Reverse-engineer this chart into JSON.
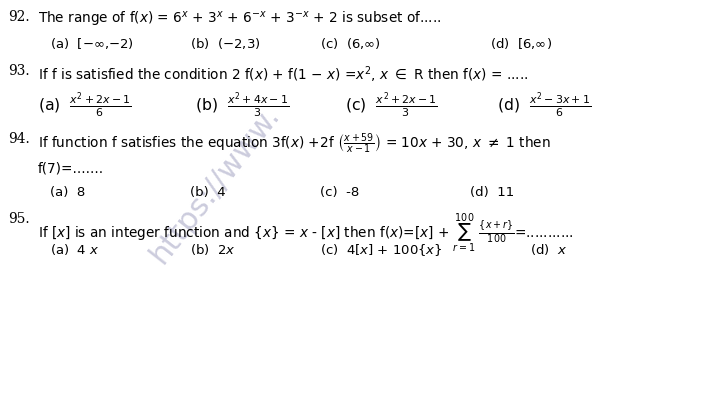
{
  "bg_color": "#ffffff",
  "watermark_text": "https://www.",
  "q92_num": "92.",
  "q92_text": "The range of f(x) = 6",
  "q93_num": "93.",
  "q94_num": "94.",
  "q95_num": "95.",
  "fs": 9.8,
  "fs_opt": 9.5
}
